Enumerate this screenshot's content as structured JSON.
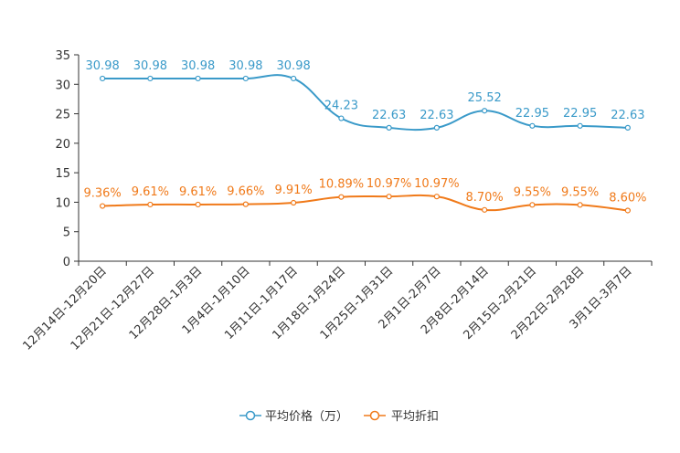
{
  "chart_data": {
    "type": "line",
    "categories": [
      "12月14日-12月20日",
      "12月21日-12月27日",
      "12月28日-1月3日",
      "1月4日-1月10日",
      "1月11日-1月17日",
      "1月18日-1月24日",
      "1月25日-1月31日",
      "2月1日-2月7日",
      "2月8日-2月14日",
      "2月15日-2月21日",
      "2月22日-2月28日",
      "3月1日-3月7日"
    ],
    "ylim": [
      0,
      35
    ],
    "yticks": [
      0,
      5,
      10,
      15,
      20,
      25,
      30,
      35
    ],
    "series": [
      {
        "name": "平均价格（万）",
        "color": "#3a9ac9",
        "values": [
          30.98,
          30.98,
          30.98,
          30.98,
          30.98,
          24.23,
          22.63,
          22.63,
          25.52,
          22.95,
          22.95,
          22.63
        ],
        "labels": [
          "30.98",
          "30.98",
          "30.98",
          "30.98",
          "30.98",
          "24.23",
          "22.63",
          "22.63",
          "25.52",
          "22.95",
          "22.95",
          "22.63"
        ]
      },
      {
        "name": "平均折扣",
        "color": "#f07a1a",
        "values": [
          9.36,
          9.61,
          9.61,
          9.66,
          9.91,
          10.89,
          10.97,
          10.97,
          8.7,
          9.55,
          9.55,
          8.6
        ],
        "labels": [
          "9.36%",
          "9.61%",
          "9.61%",
          "9.66%",
          "9.91%",
          "10.89%",
          "10.97%",
          "10.97%",
          "8.70%",
          "9.55%",
          "9.55%",
          "8.60%"
        ]
      }
    ],
    "legend_position": "bottom-center"
  }
}
